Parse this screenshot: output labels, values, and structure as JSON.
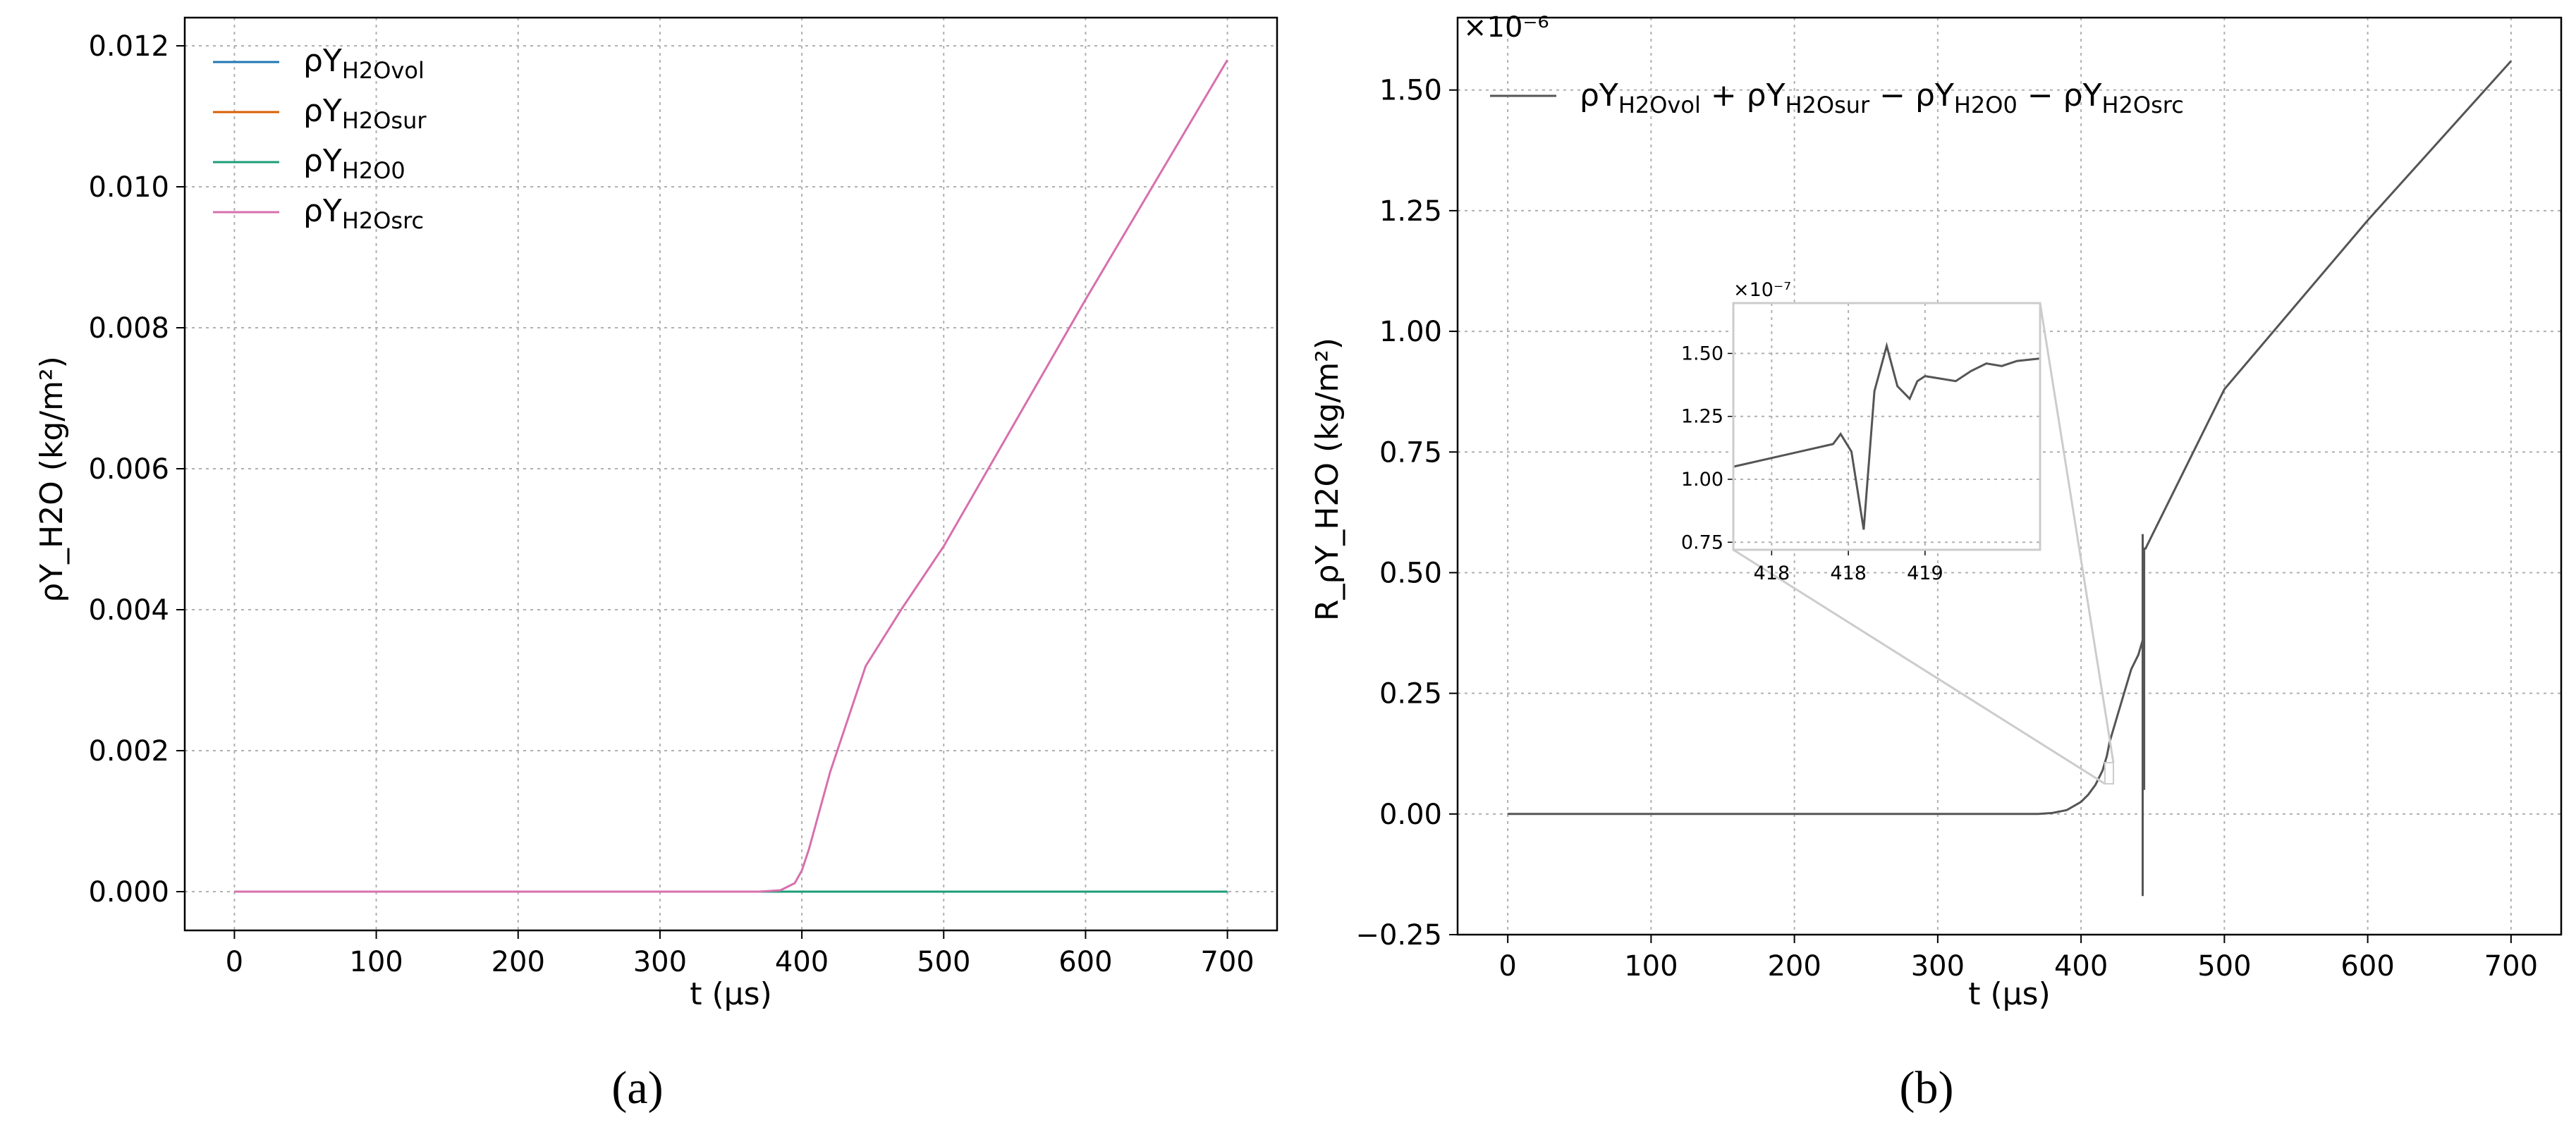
{
  "chart_data": [
    {
      "id": "a",
      "type": "line",
      "caption": "(a)",
      "xlabel": "t (μs)",
      "ylabel": "ρY_H2O (kg/m²)",
      "xlim": [
        -35,
        735
      ],
      "ylim": [
        -0.00055,
        0.0124
      ],
      "xticks": [
        0,
        100,
        200,
        300,
        400,
        500,
        600,
        700
      ],
      "yticks": [
        0.0,
        0.002,
        0.004,
        0.006,
        0.008,
        0.01,
        0.012
      ],
      "ytick_labels": [
        "0.000",
        "0.002",
        "0.004",
        "0.006",
        "0.008",
        "0.010",
        "0.012"
      ],
      "grid": true,
      "legend_position": "upper-left",
      "series": [
        {
          "name": "ρY",
          "sub": "H2Ovol",
          "color": "#1f77b4",
          "x": [
            0,
            700
          ],
          "y": [
            0,
            0
          ]
        },
        {
          "name": "ρY",
          "sub": "H2Osur",
          "color": "#d95f02",
          "x": [
            0,
            700
          ],
          "y": [
            0,
            0
          ]
        },
        {
          "name": "ρY",
          "sub": "H2O0",
          "color": "#1b9e77",
          "x": [
            0,
            700
          ],
          "y": [
            0,
            0
          ]
        },
        {
          "name": "ρY",
          "sub": "H2Osrc",
          "color": "#d770ad",
          "x": [
            0,
            370,
            385,
            395,
            400,
            405,
            420,
            445,
            470,
            500,
            600,
            700
          ],
          "y": [
            0,
            0,
            2e-05,
            0.00012,
            0.0003,
            0.0006,
            0.0017,
            0.0032,
            0.004,
            0.0049,
            0.0084,
            0.0118
          ]
        }
      ]
    },
    {
      "id": "b",
      "type": "line",
      "caption": "(b)",
      "xlabel": "t (μs)",
      "ylabel": "R_ρY_H2O (kg/m²)",
      "multiplier": "×10⁻⁶",
      "xlim": [
        -35,
        735
      ],
      "ylim": [
        -0.25,
        1.65
      ],
      "xticks": [
        0,
        100,
        200,
        300,
        400,
        500,
        600,
        700
      ],
      "yticks": [
        -0.25,
        0.0,
        0.25,
        0.5,
        0.75,
        1.0,
        1.25,
        1.5
      ],
      "ytick_labels": [
        "−0.25",
        "0.00",
        "0.25",
        "0.50",
        "0.75",
        "1.00",
        "1.25",
        "1.50"
      ],
      "grid": true,
      "legend_position": "upper-left",
      "legend_label": "ρY_H2Ovol + ρY_H2Osur − ρY_H2O0 − ρY_H2Osrc",
      "series": [
        {
          "name": "ρY_H2Ovol + ρY_H2Osur − ρY_H2O0 − ρY_H2Osrc",
          "color": "#555555",
          "x": [
            0,
            370,
            380,
            390,
            400,
            405,
            410,
            415,
            418,
            420,
            425,
            430,
            435,
            440,
            443,
            443,
            443,
            444,
            444,
            444,
            445,
            450,
            500,
            600,
            700
          ],
          "y": [
            0,
            0,
            0.002,
            0.008,
            0.025,
            0.04,
            0.06,
            0.09,
            0.12,
            0.15,
            0.2,
            0.25,
            0.3,
            0.33,
            0.36,
            -0.17,
            0.58,
            0.05,
            0.55,
            0.55,
            0.55,
            0.58,
            0.88,
            1.23,
            1.56
          ]
        }
      ],
      "inset": {
        "multiplier": "×10⁻⁷",
        "xlim": [
          417.55,
          419.55
        ],
        "ylim": [
          0.72,
          1.7
        ],
        "xticks": [
          417.8,
          418.3,
          418.8
        ],
        "xtick_labels": [
          "418",
          "418",
          "419"
        ],
        "yticks": [
          0.75,
          1.0,
          1.25,
          1.5
        ],
        "ytick_labels": [
          "0.75",
          "1.00",
          "1.25",
          "1.50"
        ],
        "x": [
          417.55,
          418.2,
          418.25,
          418.32,
          418.4,
          418.47,
          418.55,
          418.62,
          418.7,
          418.75,
          418.8,
          418.9,
          419.0,
          419.1,
          419.2,
          419.3,
          419.4,
          419.55
        ],
        "y": [
          1.05,
          1.14,
          1.18,
          1.11,
          0.8,
          1.35,
          1.53,
          1.37,
          1.32,
          1.39,
          1.41,
          1.4,
          1.39,
          1.43,
          1.46,
          1.45,
          1.47,
          1.48
        ]
      }
    }
  ]
}
